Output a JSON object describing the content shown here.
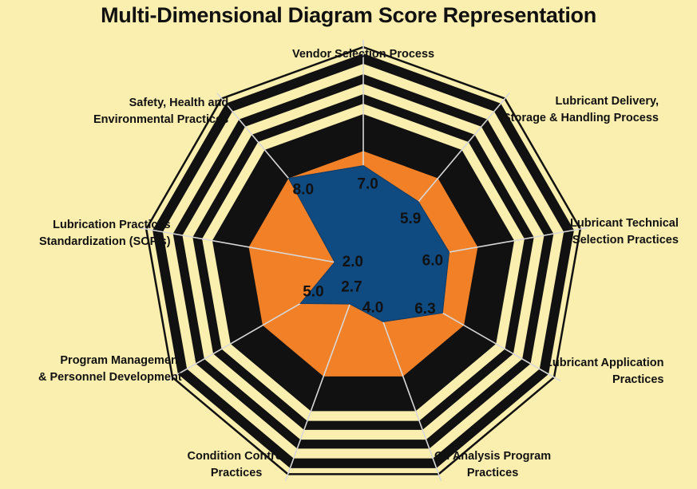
{
  "chart_data": {
    "type": "radar",
    "title": "Multi-Dimensional Diagram Score Representation",
    "axes": [
      {
        "lines": [
          "Vendor Selection Process"
        ],
        "value": 7.0,
        "label": "7.0"
      },
      {
        "lines": [
          "Lubricant Delivery,",
          "Storage & Handling Process"
        ],
        "value": 5.9,
        "label": "5.9"
      },
      {
        "lines": [
          "Lubricant Technical",
          "Selection Practices"
        ],
        "value": 6.0,
        "label": "6.0"
      },
      {
        "lines": [
          "Lubricant Application",
          "Practices"
        ],
        "value": 6.3,
        "label": "6.3"
      },
      {
        "lines": [
          "Oil Analysis Program",
          "Practices"
        ],
        "value": 4.0,
        "label": "4.0"
      },
      {
        "lines": [
          "Condition Control",
          "Practices"
        ],
        "value": 2.7,
        "label": "2.7"
      },
      {
        "lines": [
          "Program Management",
          "& Personnel Development"
        ],
        "value": 5.0,
        "label": "5.0"
      },
      {
        "lines": [
          "Lubrication Practices",
          "Standardization (SOP's)"
        ],
        "value": 2.0,
        "label": "2.0"
      },
      {
        "lines": [
          "Safety, Health and",
          "Environmental Practices"
        ],
        "value": 8.0,
        "label": "8.0"
      }
    ],
    "target_level": 8.0,
    "scale_max": 10,
    "colors": {
      "background": "#fbefb0",
      "score_fill": "#0f4a80",
      "target_fill": "#f28027",
      "ring_band": "#111111",
      "grid_lines": "#d8d8d8"
    }
  }
}
